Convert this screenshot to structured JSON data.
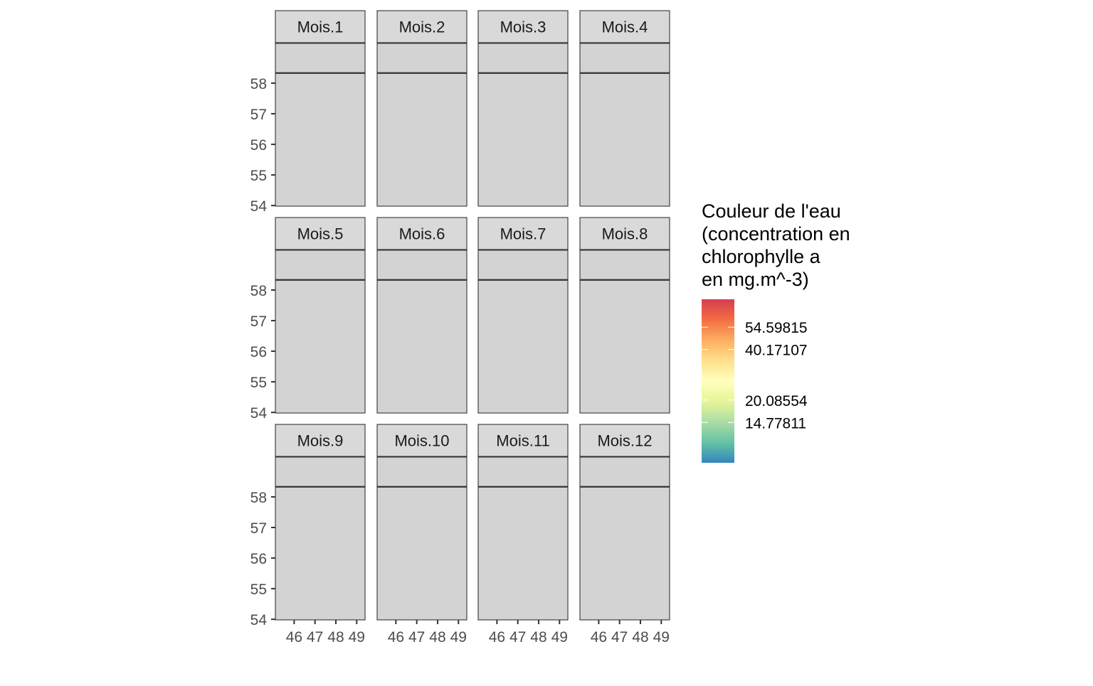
{
  "chart_data": {
    "type": "heatmap",
    "facet_labels": [
      "Mois.1",
      "Mois.2",
      "Mois.3",
      "Mois.4",
      "Mois.5",
      "Mois.6",
      "Mois.7",
      "Mois.8",
      "Mois.9",
      "Mois.10",
      "Mois.11",
      "Mois.12"
    ],
    "facet_layout": {
      "rows": 3,
      "cols": 4
    },
    "xlim": [
      45.1,
      49.4
    ],
    "ylim": [
      53.98,
      59.3
    ],
    "x_ticks": [
      46,
      47,
      48,
      49
    ],
    "y_ticks": [
      54,
      55,
      56,
      57,
      58
    ],
    "x_tick_labels": [
      "46",
      "47",
      "48",
      "49"
    ],
    "y_tick_labels": [
      "54",
      "55",
      "56",
      "57",
      "58"
    ],
    "reference_line_y": 58.33,
    "panel_fill": "#d3d3d3",
    "strip_fill": "#d9d9d9",
    "legend": {
      "title_lines": [
        "Couleur de l'eau",
        "(concentration en",
        "chlorophylle a",
        "en mg.m^-3)"
      ],
      "type": "continuous",
      "scale": "log",
      "breaks": [
        54.59815,
        40.17107,
        20.08554,
        14.77811
      ],
      "break_labels": [
        "54.59815",
        "40.17107",
        "20.08554",
        "14.77811"
      ],
      "position": "right",
      "palette": [
        "#3288bd",
        "#66c2a5",
        "#abdda4",
        "#e6f598",
        "#ffffbf",
        "#fee08b",
        "#fdae61",
        "#f46d43",
        "#d53e4f"
      ]
    }
  }
}
